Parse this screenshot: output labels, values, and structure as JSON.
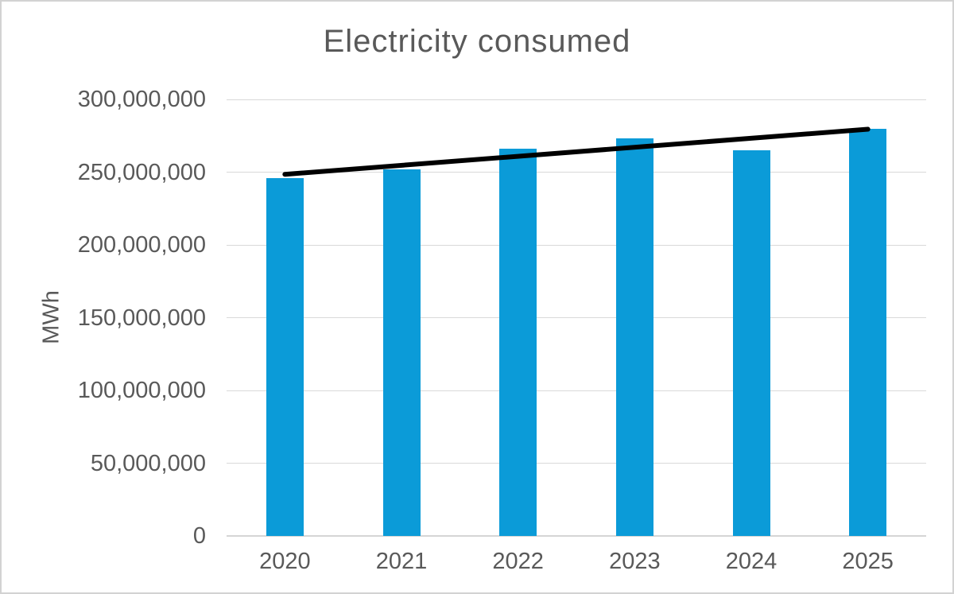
{
  "chart_data": {
    "type": "bar",
    "title": "Electricity consumed",
    "ylabel": "MWh",
    "xlabel": "",
    "categories": [
      "2020",
      "2021",
      "2022",
      "2023",
      "2024",
      "2025"
    ],
    "values": [
      246000000,
      252000000,
      266000000,
      273000000,
      265000000,
      280000000
    ],
    "ylim": [
      0,
      300000000
    ],
    "y_tick_step": 50000000,
    "y_ticks": [
      {
        "value": 0,
        "label": "0"
      },
      {
        "value": 50000000,
        "label": "50,000,000"
      },
      {
        "value": 100000000,
        "label": "100,000,000"
      },
      {
        "value": 150000000,
        "label": "150,000,000"
      },
      {
        "value": 200000000,
        "label": "200,000,000"
      },
      {
        "value": 250000000,
        "label": "250,000,000"
      },
      {
        "value": 300000000,
        "label": "300,000,000"
      }
    ],
    "grid": true,
    "legend": "none",
    "trendline": {
      "type": "linear",
      "start_value": 248500000,
      "end_value": 279500000,
      "stroke_width": 6
    },
    "colors": {
      "bar": "#0b9bd8",
      "gridline": "#d9d9d9",
      "axis_line": "#d5d5d5",
      "text": "#595959",
      "trendline": "#000000",
      "background": "#ffffff",
      "canvas_border": "#d2d2d2"
    }
  }
}
